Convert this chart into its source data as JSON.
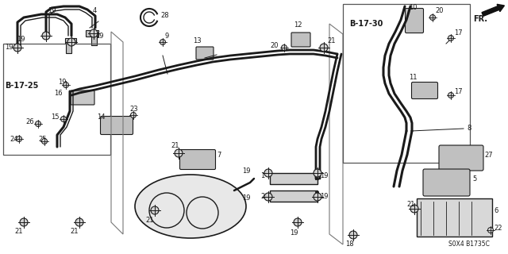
{
  "bg_color": "#ffffff",
  "line_color": "#1a1a1a",
  "ref_b1725": "B-17-25",
  "ref_b1730": "B-17-30",
  "ref_fr": "FR.",
  "ref_code": "S0X4 B1735C"
}
